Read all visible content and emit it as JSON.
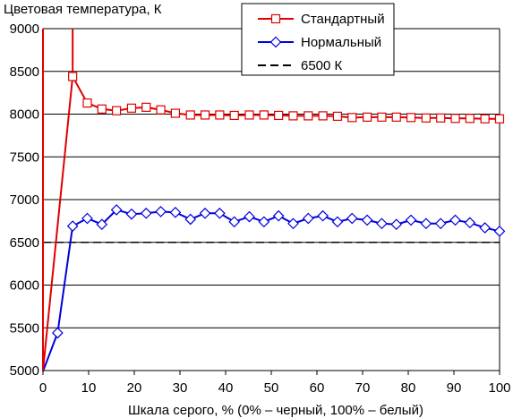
{
  "chart_data": {
    "type": "line",
    "title": "",
    "ylabel": "Цветовая температура, К",
    "xlabel": "Шкала серого, % (0% – черный, 100% – белый)",
    "xlim": [
      0,
      100
    ],
    "ylim": [
      5000,
      9000
    ],
    "xticks": [
      "0",
      "10",
      "20",
      "30",
      "40",
      "50",
      "60",
      "70",
      "80",
      "90",
      "100"
    ],
    "yticks": [
      "5000",
      "5500",
      "6000",
      "6500",
      "7000",
      "7500",
      "8000",
      "8500",
      "9000"
    ],
    "grid": "horizontal",
    "legend_position": "top-right",
    "series": [
      {
        "name": "Стандартный",
        "color": "#e00000",
        "marker": "square",
        "x": [
          0,
          6.5,
          9.7,
          12.9,
          16.1,
          19.4,
          22.6,
          25.8,
          29.0,
          32.3,
          35.5,
          38.7,
          41.9,
          45.2,
          48.4,
          51.6,
          54.8,
          58.1,
          61.3,
          64.5,
          67.7,
          71.0,
          74.2,
          77.4,
          80.6,
          83.9,
          87.1,
          90.3,
          93.5,
          96.8,
          100
        ],
        "y": [
          5000,
          8440,
          8130,
          8060,
          8040,
          8070,
          8080,
          8050,
          8010,
          7990,
          7990,
          7990,
          7985,
          7990,
          7990,
          7985,
          7980,
          7980,
          7980,
          7975,
          7960,
          7965,
          7965,
          7965,
          7960,
          7955,
          7955,
          7950,
          7950,
          7945,
          7945
        ],
        "extra_vertical": {
          "x": 6.5,
          "y_from": 8440,
          "y_to": 9000
        }
      },
      {
        "name": "Нормальный",
        "color": "#0000dd",
        "marker": "diamond",
        "x": [
          0,
          3.2,
          6.5,
          9.7,
          12.9,
          16.1,
          19.4,
          22.6,
          25.8,
          29.0,
          32.3,
          35.5,
          38.7,
          41.9,
          45.2,
          48.4,
          51.6,
          54.8,
          58.1,
          61.3,
          64.5,
          67.7,
          71.0,
          74.2,
          77.4,
          80.6,
          83.9,
          87.1,
          90.3,
          93.5,
          96.8,
          100
        ],
        "y": [
          4990,
          5440,
          6690,
          6780,
          6710,
          6880,
          6830,
          6840,
          6860,
          6850,
          6770,
          6840,
          6840,
          6740,
          6800,
          6740,
          6810,
          6720,
          6780,
          6810,
          6740,
          6780,
          6760,
          6720,
          6710,
          6760,
          6720,
          6720,
          6760,
          6730,
          6670,
          6630
        ]
      },
      {
        "name": "6500 К",
        "color": "#000000",
        "marker": "none",
        "dashed": true,
        "x": [
          0,
          100
        ],
        "y": [
          6500,
          6500
        ]
      }
    ]
  }
}
